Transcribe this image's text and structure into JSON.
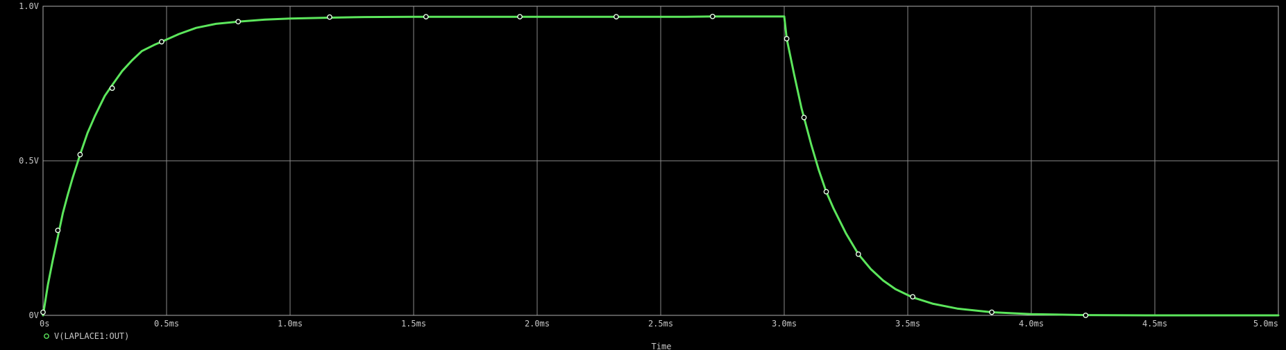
{
  "chart_data": {
    "type": "line",
    "xlabel": "Time",
    "ylabel": "",
    "xlim": [
      0,
      5.0
    ],
    "ylim": [
      0,
      1.0
    ],
    "x_unit": "ms",
    "grid": true,
    "legend_position": "bottom-left",
    "x_ticks": [
      {
        "value": 0,
        "label": "0s"
      },
      {
        "value": 0.5,
        "label": "0.5ms"
      },
      {
        "value": 1.0,
        "label": "1.0ms"
      },
      {
        "value": 1.5,
        "label": "1.5ms"
      },
      {
        "value": 2.0,
        "label": "2.0ms"
      },
      {
        "value": 2.5,
        "label": "2.5ms"
      },
      {
        "value": 3.0,
        "label": "3.0ms"
      },
      {
        "value": 3.5,
        "label": "3.5ms"
      },
      {
        "value": 4.0,
        "label": "4.0ms"
      },
      {
        "value": 4.5,
        "label": "4.5ms"
      },
      {
        "value": 5.0,
        "label": "5.0ms"
      }
    ],
    "y_ticks": [
      {
        "value": 0,
        "label": "0V"
      },
      {
        "value": 0.5,
        "label": "0.5V"
      },
      {
        "value": 1.0,
        "label": "1.0V"
      }
    ],
    "series": [
      {
        "name": "V(LAPLACE1:OUT)",
        "color": "#5ce65c",
        "marker": "circle-open",
        "x": [
          0,
          0.02,
          0.04,
          0.06,
          0.08,
          0.1,
          0.12,
          0.15,
          0.18,
          0.21,
          0.25,
          0.28,
          0.32,
          0.36,
          0.4,
          0.45,
          0.48,
          0.55,
          0.62,
          0.7,
          0.79,
          0.9,
          1.0,
          1.16,
          1.3,
          1.5,
          1.55,
          1.8,
          1.93,
          2.2,
          2.32,
          2.6,
          2.71,
          2.9,
          3.0,
          3.01,
          3.04,
          3.07,
          3.08,
          3.11,
          3.14,
          3.17,
          3.2,
          3.25,
          3.3,
          3.35,
          3.4,
          3.45,
          3.52,
          3.6,
          3.7,
          3.84,
          4.0,
          4.22,
          4.5,
          5.0
        ],
        "y": [
          0.0,
          0.1,
          0.18,
          0.255,
          0.33,
          0.39,
          0.445,
          0.52,
          0.59,
          0.645,
          0.71,
          0.745,
          0.79,
          0.825,
          0.855,
          0.875,
          0.885,
          0.91,
          0.93,
          0.943,
          0.95,
          0.957,
          0.96,
          0.963,
          0.965,
          0.966,
          0.966,
          0.966,
          0.966,
          0.966,
          0.966,
          0.966,
          0.967,
          0.967,
          0.967,
          0.895,
          0.78,
          0.67,
          0.64,
          0.55,
          0.47,
          0.4,
          0.345,
          0.265,
          0.198,
          0.15,
          0.113,
          0.085,
          0.058,
          0.038,
          0.022,
          0.01,
          0.004,
          0.001,
          0.0,
          0.0
        ],
        "markers_x": [
          0.0,
          0.06,
          0.15,
          0.28,
          0.48,
          0.79,
          1.16,
          1.55,
          1.93,
          2.32,
          2.71,
          3.01,
          3.08,
          3.17,
          3.3,
          3.52,
          3.84,
          4.22
        ],
        "markers_y": [
          0.01,
          0.275,
          0.52,
          0.735,
          0.885,
          0.95,
          0.965,
          0.966,
          0.966,
          0.966,
          0.967,
          0.895,
          0.64,
          0.4,
          0.198,
          0.06,
          0.01,
          0.0
        ]
      }
    ]
  }
}
